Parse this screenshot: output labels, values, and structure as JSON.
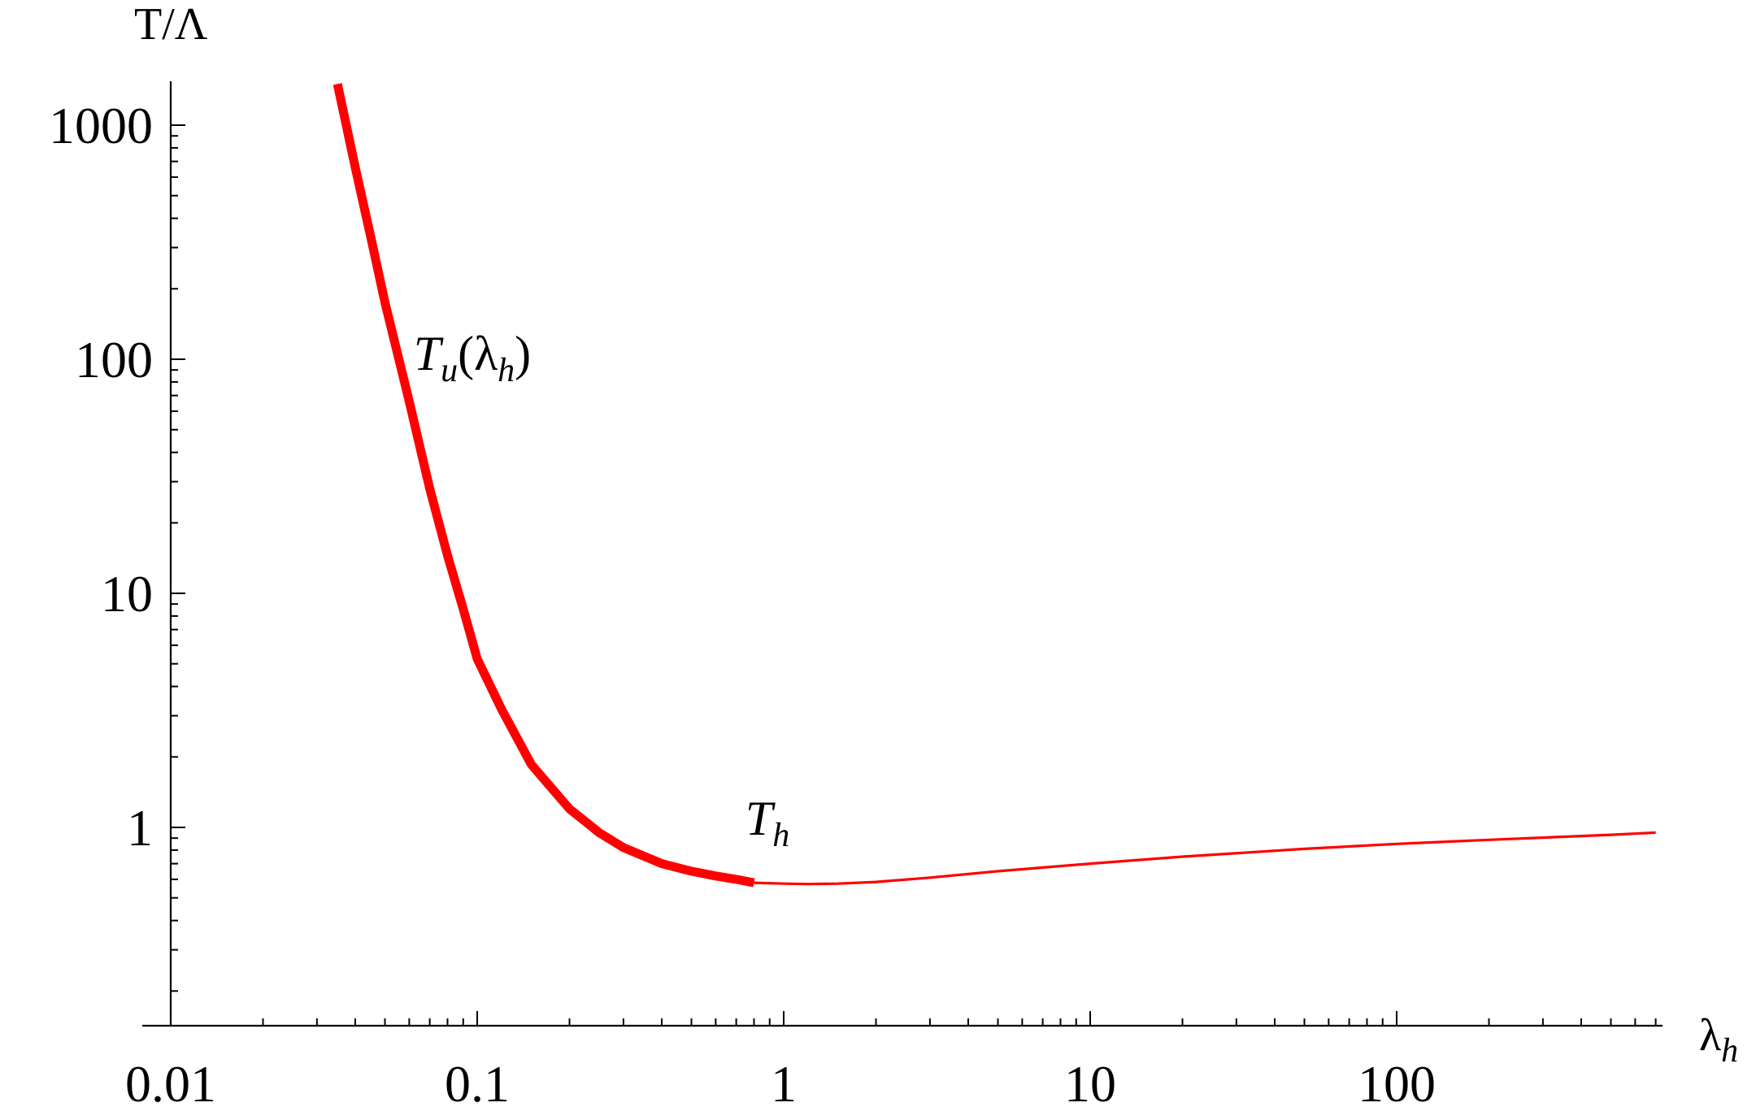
{
  "chart_data": {
    "type": "line",
    "xlabel": "λ",
    "xlabel_sub": "h",
    "ylabel": "T/Λ",
    "x_scale": "log",
    "y_scale": "log",
    "xlim": [
      0.01,
      700
    ],
    "ylim": [
      0.14,
      1500
    ],
    "x_ticks": [
      {
        "value": 0.01,
        "label": "0.01"
      },
      {
        "value": 0.1,
        "label": "0.1"
      },
      {
        "value": 1,
        "label": "1"
      },
      {
        "value": 10,
        "label": "10"
      },
      {
        "value": 100,
        "label": "100"
      }
    ],
    "y_ticks": [
      {
        "value": 1,
        "label": "1"
      },
      {
        "value": 10,
        "label": "10"
      },
      {
        "value": 100,
        "label": "100"
      },
      {
        "value": 1000,
        "label": "1000"
      }
    ],
    "grid": false,
    "series_color": "#ff0000",
    "series": [
      {
        "style": "thick",
        "x": [
          0.035,
          0.04,
          0.045,
          0.05,
          0.06,
          0.07,
          0.08,
          0.09,
          0.1,
          0.12,
          0.15,
          0.2,
          0.25,
          0.3,
          0.4,
          0.5,
          0.6,
          0.7,
          0.8
        ],
        "y": [
          1500,
          660,
          330,
          175,
          66,
          28,
          14.5,
          8.6,
          5.25,
          3.2,
          1.86,
          1.2,
          0.95,
          0.82,
          0.7,
          0.65,
          0.62,
          0.6,
          0.58
        ]
      },
      {
        "style": "thin",
        "x": [
          0.8,
          1,
          1.2,
          1.5,
          2,
          3,
          5,
          10,
          20,
          50,
          100,
          200,
          500,
          700
        ],
        "y": [
          0.58,
          0.575,
          0.573,
          0.575,
          0.585,
          0.61,
          0.65,
          0.7,
          0.75,
          0.81,
          0.85,
          0.885,
          0.93,
          0.95
        ]
      }
    ],
    "annotations": [
      {
        "text": "T",
        "sub": "u",
        "tail": "(λ",
        "tail_sub": "h",
        "close": ")",
        "x": 0.062,
        "y": 90
      },
      {
        "text": "T",
        "sub": "h",
        "x": 0.75,
        "y": 0.93
      }
    ]
  }
}
